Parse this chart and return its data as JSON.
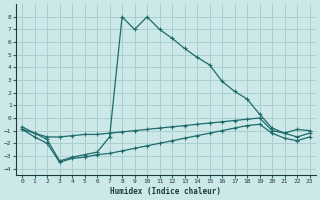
{
  "xlabel": "Humidex (Indice chaleur)",
  "bg_color": "#cce8e8",
  "grid_color": "#aacfcf",
  "line_color": "#1e6b6b",
  "xlim": [
    -0.5,
    23.5
  ],
  "ylim": [
    -4.5,
    9.0
  ],
  "xticks": [
    0,
    1,
    2,
    3,
    4,
    5,
    6,
    7,
    8,
    9,
    10,
    11,
    12,
    13,
    14,
    15,
    16,
    17,
    18,
    19,
    20,
    21,
    22,
    23
  ],
  "yticks": [
    -4,
    -3,
    -2,
    -1,
    0,
    1,
    2,
    3,
    4,
    5,
    6,
    7,
    8
  ],
  "series1_x": [
    0,
    1,
    2,
    3,
    4,
    5,
    6,
    7,
    8,
    9,
    10,
    11,
    12,
    13,
    14,
    15,
    16,
    17,
    18,
    19,
    20,
    21,
    22,
    23
  ],
  "series1_y": [
    -0.7,
    -1.2,
    -1.7,
    -3.4,
    -3.1,
    -2.9,
    -2.7,
    -1.5,
    8.0,
    7.0,
    8.0,
    7.0,
    6.3,
    5.5,
    4.8,
    4.2,
    2.9,
    2.1,
    1.5,
    0.3,
    -0.8,
    -1.2,
    -0.9,
    -1.0
  ],
  "series2_x": [
    0,
    1,
    2,
    3,
    4,
    5,
    6,
    7,
    8,
    9,
    10,
    11,
    12,
    13,
    14,
    15,
    16,
    17,
    18,
    19,
    20,
    21,
    22,
    23
  ],
  "series2_y": [
    -0.9,
    -1.2,
    -1.5,
    -1.5,
    -1.4,
    -1.3,
    -1.3,
    -1.2,
    -1.1,
    -1.0,
    -0.9,
    -0.8,
    -0.7,
    -0.6,
    -0.5,
    -0.4,
    -0.3,
    -0.2,
    -0.1,
    0.0,
    -1.0,
    -1.2,
    -1.5,
    -1.2
  ],
  "series3_x": [
    0,
    1,
    2,
    3,
    4,
    5,
    6,
    7,
    8,
    9,
    10,
    11,
    12,
    13,
    14,
    15,
    16,
    17,
    18,
    19,
    20,
    21,
    22,
    23
  ],
  "series3_y": [
    -0.9,
    -1.5,
    -2.0,
    -3.5,
    -3.2,
    -3.1,
    -2.9,
    -2.8,
    -2.6,
    -2.4,
    -2.2,
    -2.0,
    -1.8,
    -1.6,
    -1.4,
    -1.2,
    -1.0,
    -0.8,
    -0.6,
    -0.5,
    -1.2,
    -1.6,
    -1.8,
    -1.5
  ]
}
